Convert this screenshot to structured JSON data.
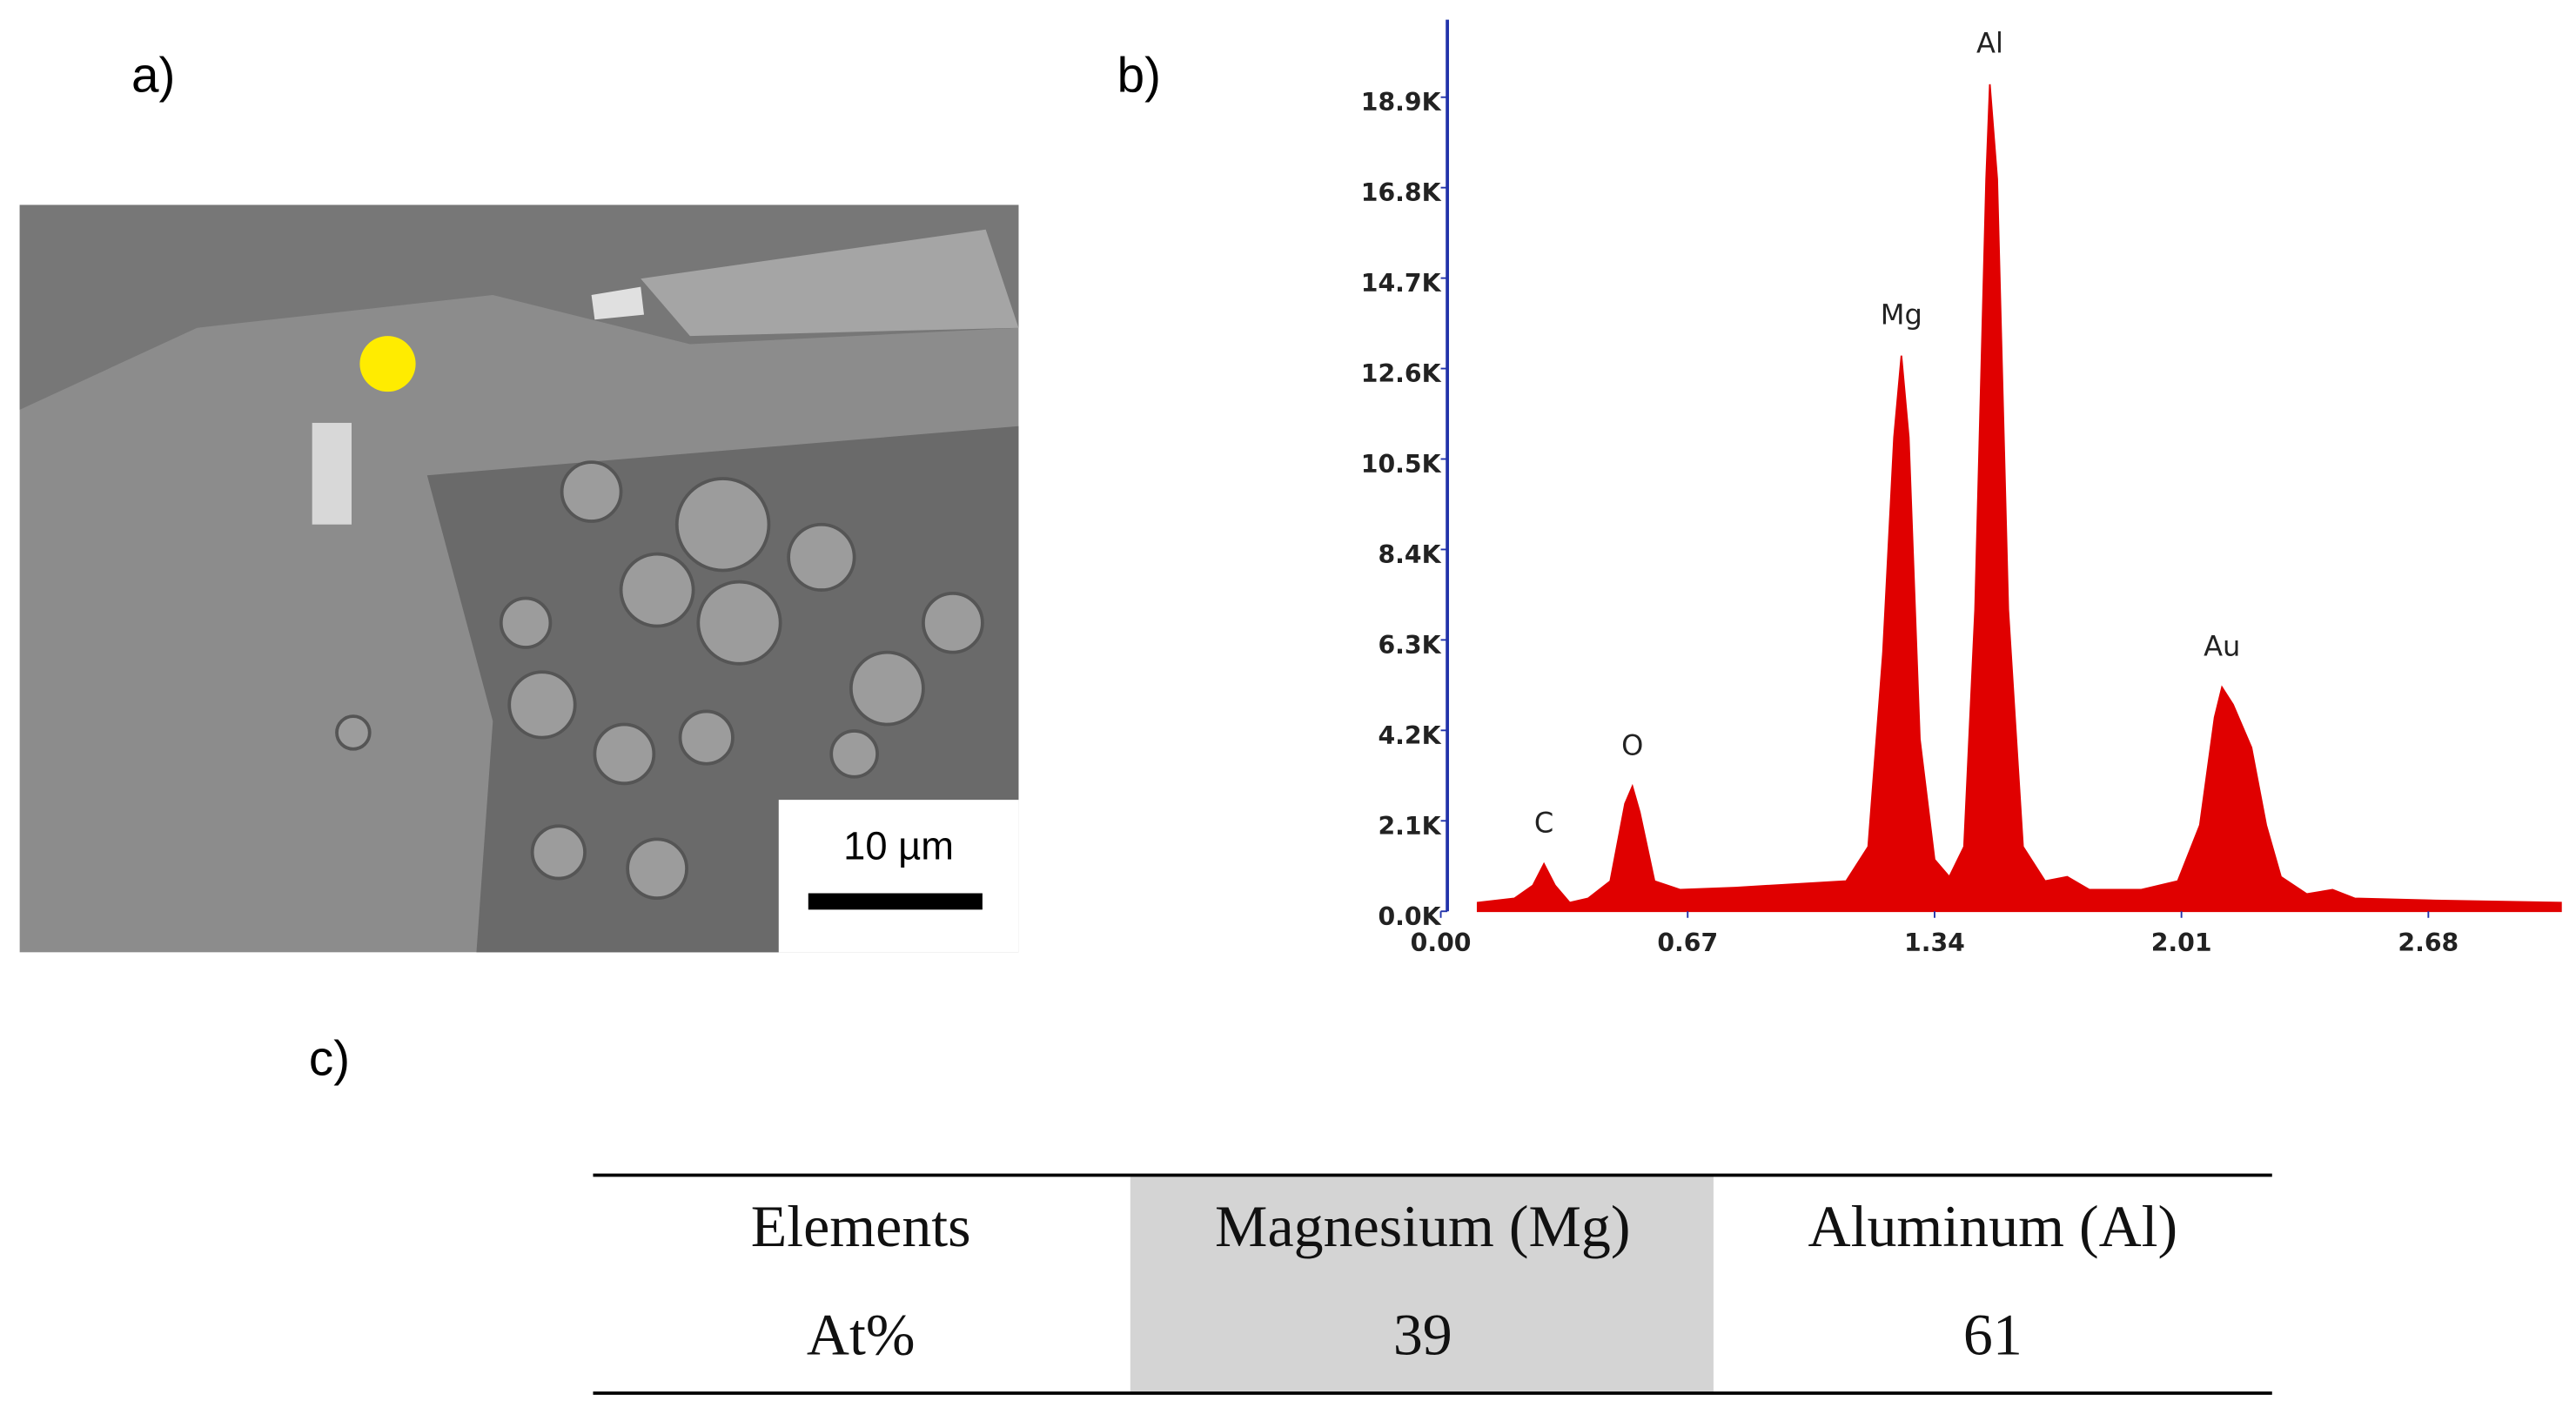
{
  "panels": {
    "a": "a)",
    "b": "b)",
    "c": "c)"
  },
  "scale_bar": "10 µm",
  "chart_data": {
    "type": "area",
    "color": "#e00000",
    "x": [
      0.1,
      0.2,
      0.25,
      0.28,
      0.31,
      0.35,
      0.4,
      0.46,
      0.5,
      0.52,
      0.54,
      0.58,
      0.65,
      0.8,
      1.0,
      1.1,
      1.16,
      1.2,
      1.23,
      1.25,
      1.27,
      1.3,
      1.34,
      1.38,
      1.42,
      1.45,
      1.48,
      1.49,
      1.51,
      1.54,
      1.58,
      1.64,
      1.7,
      1.76,
      1.9,
      2.0,
      2.06,
      2.1,
      2.12,
      2.15,
      2.2,
      2.24,
      2.28,
      2.35,
      2.42,
      2.48,
      2.7,
      3.04
    ],
    "values": [
      200,
      300,
      600,
      1100,
      600,
      200,
      300,
      700,
      2500,
      2900,
      2300,
      700,
      500,
      550,
      650,
      700,
      1500,
      6000,
      11000,
      12900,
      11000,
      4000,
      1200,
      800,
      1500,
      7000,
      17000,
      19200,
      17000,
      7000,
      1500,
      700,
      800,
      500,
      500,
      700,
      2000,
      4500,
      5200,
      4800,
      3800,
      2000,
      800,
      400,
      500,
      300,
      250,
      200
    ],
    "xlim": [
      0,
      3.04
    ],
    "ylim": [
      0,
      20700
    ],
    "xticks": [
      {
        "value": 0,
        "label": "0.00"
      },
      0.67,
      1.34,
      2.01,
      2.68
    ],
    "yticks": [
      {
        "value": 0,
        "label": "0.0K"
      },
      {
        "value": 2100,
        "label": "2.1K"
      },
      {
        "value": 4200,
        "label": "4.2K"
      },
      {
        "value": 6300,
        "label": "6.3K"
      },
      {
        "value": 8400,
        "label": "8.4K"
      },
      {
        "value": 10500,
        "label": "10.5K"
      },
      {
        "value": 12600,
        "label": "12.6K"
      },
      {
        "value": 14700,
        "label": "14.7K"
      },
      {
        "value": 16800,
        "label": "16.8K"
      },
      {
        "value": 18900,
        "label": "18.9K"
      }
    ],
    "annotations": [
      {
        "text": "C",
        "x": 0.28,
        "y": 1100
      },
      {
        "text": "O",
        "x": 0.52,
        "y": 2900
      },
      {
        "text": "Mg",
        "x": 1.25,
        "y": 12900
      },
      {
        "text": "Al",
        "x": 1.49,
        "y": 19200
      },
      {
        "text": "Au",
        "x": 2.12,
        "y": 5200
      }
    ]
  },
  "table": {
    "header": [
      "Elements",
      "Magnesium (Mg)",
      "Aluminum (Al)"
    ],
    "rows": [
      [
        "At%",
        "39",
        "61"
      ]
    ]
  }
}
